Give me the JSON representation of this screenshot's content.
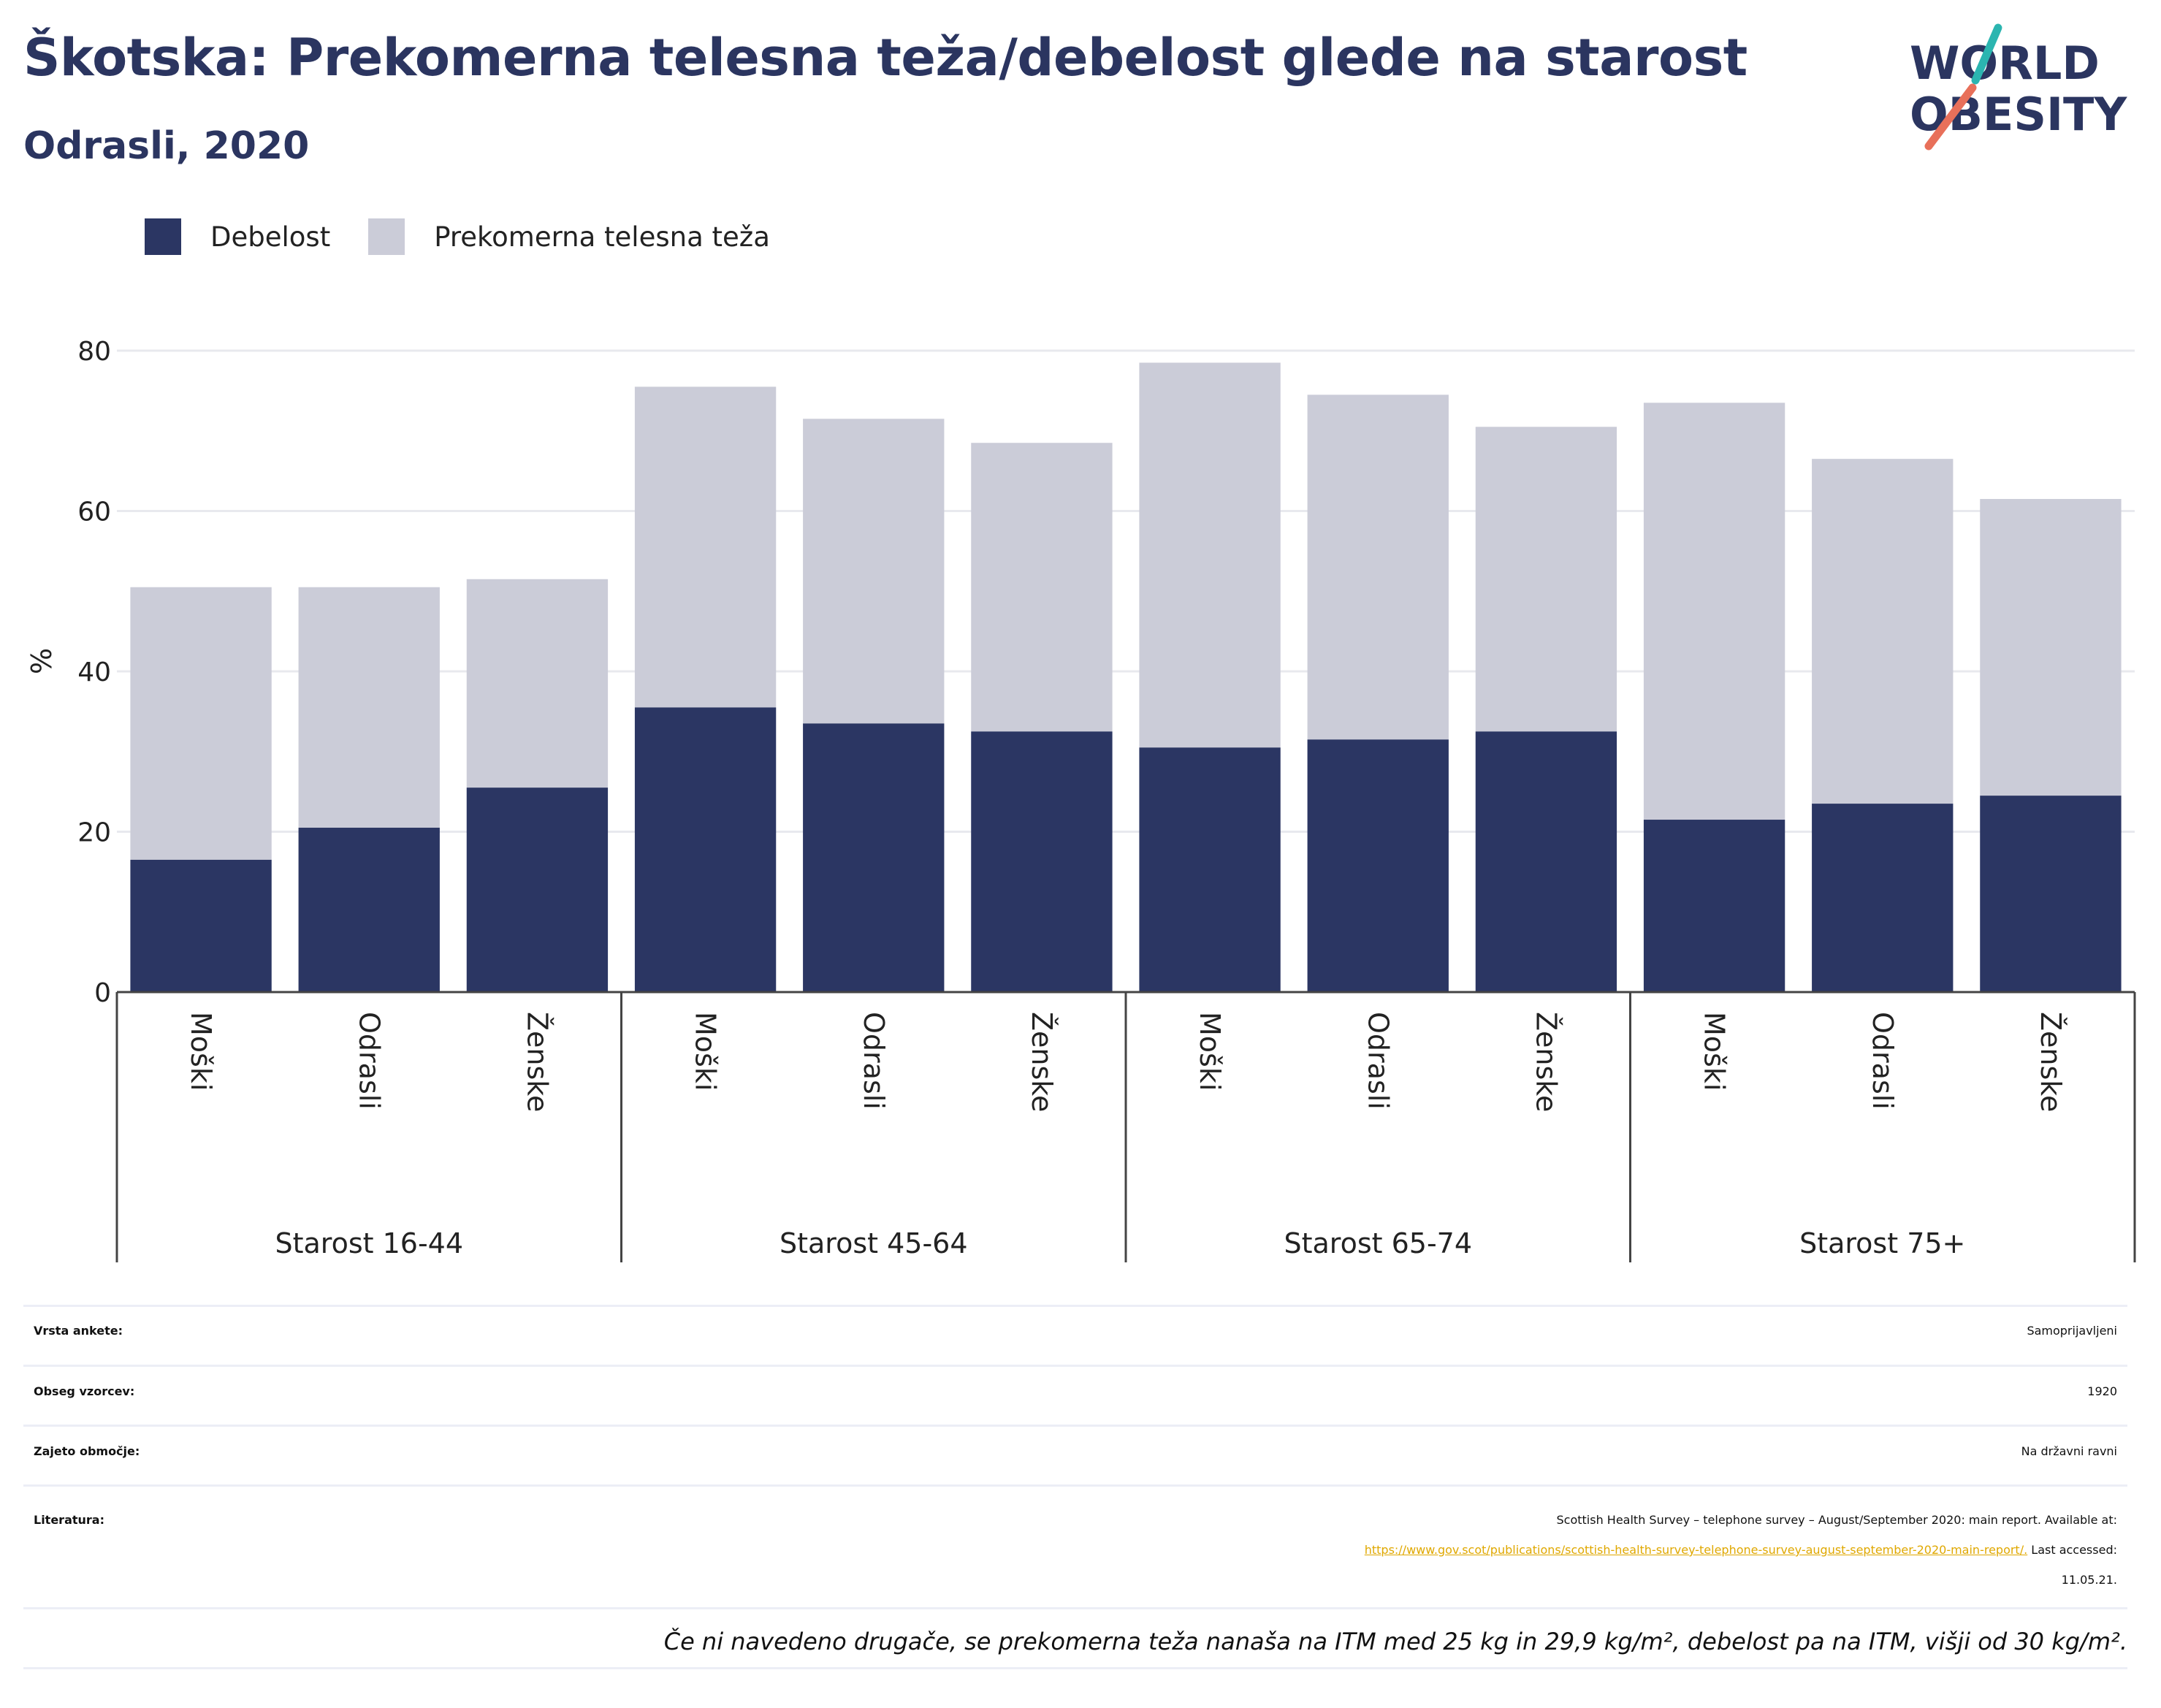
{
  "header": {
    "title": "Škotska: Prekomerna telesna teža/debelost glede na starost",
    "subtitle": "Odrasli, 2020"
  },
  "logo": {
    "line1": "WORLD",
    "line2": "OBESITY",
    "accent_colors": [
      "#2bb5b0",
      "#e8705a"
    ]
  },
  "colors": {
    "obesity": "#2b3663",
    "overweight": "#cbccd8",
    "text_dark": "#2b3560",
    "link": "#e0a800"
  },
  "chart_data": {
    "type": "bar",
    "stacked": true,
    "ylabel": "%",
    "ylim": [
      0,
      85
    ],
    "yticks": [
      0,
      20,
      40,
      60,
      80
    ],
    "grid": true,
    "legend_position": "top-left",
    "groups": [
      "Starost 16-44",
      "Starost 45-64",
      "Starost 65-74",
      "Starost 75+"
    ],
    "categories": [
      "Moški",
      "Odrasli",
      "Ženske"
    ],
    "series": [
      {
        "name": "Debelost",
        "color": "#2b3663",
        "values": [
          [
            16.5,
            20.5,
            25.5
          ],
          [
            35.5,
            33.5,
            32.5
          ],
          [
            30.5,
            31.5,
            32.5
          ],
          [
            21.5,
            23.5,
            24.5
          ]
        ]
      },
      {
        "name": "Prekomerna telesna teža",
        "color": "#cbccd8",
        "values": [
          [
            34,
            30,
            26
          ],
          [
            40,
            38,
            36
          ],
          [
            48,
            43,
            38
          ],
          [
            52,
            43,
            37
          ]
        ]
      }
    ]
  },
  "info": {
    "rows": [
      {
        "label": "Vrsta ankete:",
        "value": "Samoprijavljeni"
      },
      {
        "label": "Obseg vzorcev:",
        "value": "1920"
      },
      {
        "label": "Zajeto območje:",
        "value": "Na državni ravni"
      }
    ],
    "literature": {
      "label": "Literatura:",
      "line1": "Scottish Health Survey – telephone survey – August/September 2020: main report. Available at:",
      "link": "https://www.gov.scot/publications/scottish-health-survey-telephone-survey-august-september-2020-main-report/.",
      "after_link": " Last accessed:",
      "date": "11.05.21."
    },
    "note": "Če ni navedeno drugače, se prekomerna teža nanaša na ITM med 25 kg in 29,9 kg/m², debelost pa na ITM, višji od 30 kg/m²."
  }
}
